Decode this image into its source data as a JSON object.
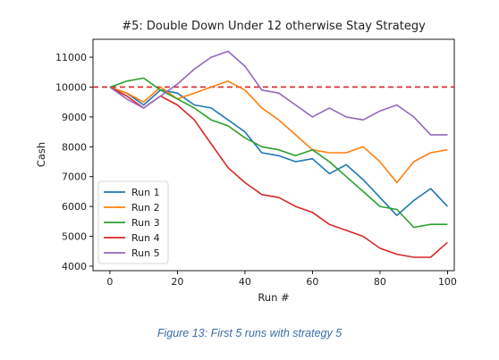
{
  "caption": "Figure 13: First 5 runs with strategy 5",
  "chart_data": {
    "type": "line",
    "title": "#5: Double Down Under 12 otherwise Stay Strategy",
    "xlabel": "Run #",
    "ylabel": "Cash",
    "xlim": [
      -5,
      102
    ],
    "ylim": [
      3850,
      11600
    ],
    "xticks": [
      0,
      20,
      40,
      60,
      80,
      100
    ],
    "yticks": [
      4000,
      5000,
      6000,
      7000,
      8000,
      9000,
      10000,
      11000
    ],
    "grid": false,
    "legend_position": "lower-left",
    "reference_line": {
      "y": 10000,
      "style": "dashed",
      "color": "#d62728"
    },
    "series": [
      {
        "name": "Run 1",
        "color": "#1f77b4",
        "x": [
          0,
          5,
          10,
          15,
          20,
          25,
          30,
          35,
          40,
          45,
          50,
          55,
          60,
          65,
          70,
          75,
          80,
          85,
          90,
          95,
          100
        ],
        "y": [
          10000,
          9800,
          9400,
          9900,
          9800,
          9400,
          9300,
          8900,
          8500,
          7800,
          7700,
          7500,
          7600,
          7100,
          7400,
          6900,
          6300,
          5700,
          6200,
          6600,
          6000
        ]
      },
      {
        "name": "Run 2",
        "color": "#ff7f0e",
        "x": [
          0,
          5,
          10,
          15,
          20,
          25,
          30,
          35,
          40,
          45,
          50,
          55,
          60,
          65,
          70,
          75,
          80,
          85,
          90,
          95,
          100
        ],
        "y": [
          10000,
          9800,
          9500,
          10000,
          9600,
          9800,
          10000,
          10200,
          9900,
          9300,
          8900,
          8400,
          7900,
          7800,
          7800,
          8000,
          7500,
          6800,
          7500,
          7800,
          7900
        ]
      },
      {
        "name": "Run 3",
        "color": "#2ca02c",
        "x": [
          0,
          5,
          10,
          15,
          20,
          25,
          30,
          35,
          40,
          45,
          50,
          55,
          60,
          65,
          70,
          75,
          80,
          85,
          90,
          95,
          100
        ],
        "y": [
          10000,
          10200,
          10300,
          9900,
          9600,
          9300,
          8900,
          8700,
          8300,
          8000,
          7900,
          7700,
          7900,
          7500,
          7000,
          6500,
          6000,
          5900,
          5300,
          5400,
          5400
        ]
      },
      {
        "name": "Run 4",
        "color": "#d62728",
        "x": [
          0,
          5,
          10,
          15,
          20,
          25,
          30,
          35,
          40,
          45,
          50,
          55,
          60,
          65,
          70,
          75,
          80,
          85,
          90,
          95,
          100
        ],
        "y": [
          10000,
          9700,
          9300,
          9700,
          9400,
          8900,
          8100,
          7300,
          6800,
          6400,
          6300,
          6000,
          5800,
          5400,
          5200,
          5000,
          4600,
          4400,
          4300,
          4300,
          4800
        ]
      },
      {
        "name": "Run 5",
        "color": "#9467bd",
        "x": [
          0,
          5,
          10,
          15,
          20,
          25,
          30,
          35,
          40,
          45,
          50,
          55,
          60,
          65,
          70,
          75,
          80,
          85,
          90,
          95,
          100
        ],
        "y": [
          10000,
          9600,
          9300,
          9700,
          10100,
          10600,
          11000,
          11200,
          10700,
          9900,
          9800,
          9400,
          9000,
          9300,
          9000,
          8900,
          9200,
          9400,
          9000,
          8400,
          8400
        ]
      }
    ]
  }
}
